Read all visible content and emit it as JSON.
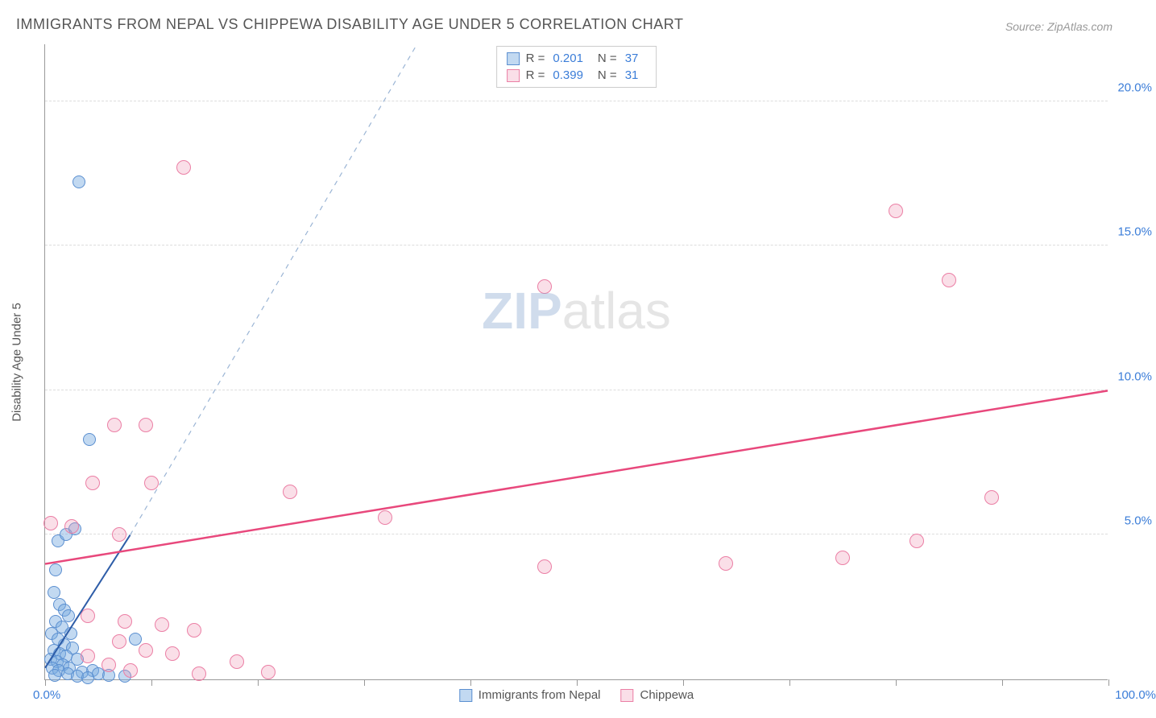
{
  "title": "IMMIGRANTS FROM NEPAL VS CHIPPEWA DISABILITY AGE UNDER 5 CORRELATION CHART",
  "source_prefix": "Source: ",
  "source_name": "ZipAtlas.com",
  "yaxis_title": "Disability Age Under 5",
  "watermark_bold": "ZIP",
  "watermark_rest": "atlas",
  "chart": {
    "type": "scatter",
    "xlim": [
      0,
      100
    ],
    "ylim": [
      0,
      22
    ],
    "x_tick_positions": [
      0,
      10,
      20,
      30,
      40,
      50,
      60,
      70,
      80,
      90,
      100
    ],
    "x_tick_labels_shown": {
      "0": "0.0%",
      "100": "100.0%"
    },
    "y_gridlines": [
      5,
      10,
      15,
      20
    ],
    "y_tick_labels": {
      "5": "5.0%",
      "10": "10.0%",
      "15": "15.0%",
      "20": "20.0%"
    },
    "background_color": "#ffffff",
    "grid_color": "#dddddd",
    "axis_color": "#999999",
    "tick_label_color": "#3b7dd8",
    "series": [
      {
        "id": "a",
        "name": "Immigrants from Nepal",
        "color_fill": "rgba(120,170,225,0.45)",
        "color_stroke": "#5b8fd0",
        "marker_size": 16,
        "R": "0.201",
        "N": "37",
        "trend": {
          "x1": 0,
          "y1": 0.4,
          "x2": 8,
          "y2": 5.0,
          "dash_extend": {
            "x2": 35,
            "y2": 22
          },
          "color": "#2e5da8",
          "width": 2
        },
        "points": [
          [
            3.2,
            17.2
          ],
          [
            4.2,
            8.3
          ],
          [
            1.2,
            4.8
          ],
          [
            2.0,
            5.0
          ],
          [
            2.8,
            5.2
          ],
          [
            1.0,
            3.8
          ],
          [
            0.8,
            3.0
          ],
          [
            1.4,
            2.6
          ],
          [
            1.8,
            2.4
          ],
          [
            2.2,
            2.2
          ],
          [
            1.0,
            2.0
          ],
          [
            1.6,
            1.8
          ],
          [
            2.4,
            1.6
          ],
          [
            0.6,
            1.6
          ],
          [
            1.2,
            1.4
          ],
          [
            1.8,
            1.2
          ],
          [
            2.6,
            1.1
          ],
          [
            0.8,
            1.0
          ],
          [
            1.4,
            0.9
          ],
          [
            2.0,
            0.8
          ],
          [
            3.0,
            0.7
          ],
          [
            0.5,
            0.7
          ],
          [
            1.1,
            0.6
          ],
          [
            1.7,
            0.5
          ],
          [
            2.3,
            0.4
          ],
          [
            0.7,
            0.4
          ],
          [
            1.3,
            0.3
          ],
          [
            4.5,
            0.3
          ],
          [
            3.5,
            0.25
          ],
          [
            2.1,
            0.2
          ],
          [
            5.0,
            0.2
          ],
          [
            6.0,
            0.15
          ],
          [
            0.9,
            0.15
          ],
          [
            3.0,
            0.1
          ],
          [
            7.5,
            0.1
          ],
          [
            4.0,
            0.05
          ],
          [
            8.5,
            1.4
          ]
        ]
      },
      {
        "id": "b",
        "name": "Chippewa",
        "color_fill": "rgba(240,150,180,0.3)",
        "color_stroke": "#eb7fa5",
        "marker_size": 18,
        "R": "0.399",
        "N": "31",
        "trend": {
          "x1": 0,
          "y1": 4.0,
          "x2": 100,
          "y2": 10.0,
          "color": "#e8487c",
          "width": 2.5
        },
        "points": [
          [
            13,
            17.7
          ],
          [
            80,
            16.2
          ],
          [
            85,
            13.8
          ],
          [
            47,
            13.6
          ],
          [
            6.5,
            8.8
          ],
          [
            9.5,
            8.8
          ],
          [
            4.5,
            6.8
          ],
          [
            10,
            6.8
          ],
          [
            23,
            6.5
          ],
          [
            89,
            6.3
          ],
          [
            32,
            5.6
          ],
          [
            82,
            4.8
          ],
          [
            0.5,
            5.4
          ],
          [
            2.5,
            5.3
          ],
          [
            7,
            5.0
          ],
          [
            64,
            4.0
          ],
          [
            47,
            3.9
          ],
          [
            75,
            4.2
          ],
          [
            4,
            2.2
          ],
          [
            7.5,
            2.0
          ],
          [
            11,
            1.9
          ],
          [
            14,
            1.7
          ],
          [
            7,
            1.3
          ],
          [
            9.5,
            1.0
          ],
          [
            12,
            0.9
          ],
          [
            18,
            0.6
          ],
          [
            8,
            0.3
          ],
          [
            14.5,
            0.2
          ],
          [
            21,
            0.25
          ],
          [
            4,
            0.8
          ],
          [
            6,
            0.5
          ]
        ]
      }
    ]
  },
  "legend_top": {
    "r_label": "R =",
    "n_label": "N ="
  }
}
